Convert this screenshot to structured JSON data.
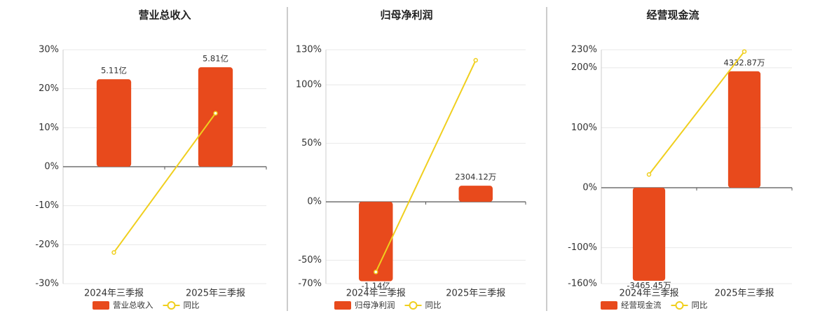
{
  "chart_data": [
    {
      "type": "combo",
      "title": "营业总收入",
      "categories": [
        "2024年三季报",
        "2025年三季报"
      ],
      "series": [
        {
          "name": "营业总收入",
          "color": "#e84a1c",
          "kind": "bar",
          "values": [
            511000000,
            581000000
          ],
          "value_labels": [
            "5.11亿",
            "5.81亿"
          ]
        },
        {
          "name": "同比",
          "color": "#f0cf1e",
          "kind": "line",
          "values": [
            -22,
            13.7
          ]
        }
      ],
      "ylim": [
        -30,
        30
      ],
      "yticks": [
        {
          "value": 30,
          "label": "30%"
        },
        {
          "value": 20,
          "label": "20%"
        },
        {
          "value": 10,
          "label": "10%"
        },
        {
          "value": 0,
          "label": "0%"
        },
        {
          "value": -10,
          "label": "-10%"
        },
        {
          "value": -20,
          "label": "-20%"
        },
        {
          "value": -30,
          "label": "-30%"
        }
      ],
      "grid": true
    },
    {
      "type": "combo",
      "title": "归母净利润",
      "categories": [
        "2024年三季报",
        "2025年三季报"
      ],
      "series": [
        {
          "name": "归母净利润",
          "color": "#e84a1c",
          "kind": "bar",
          "values": [
            -114000000,
            23041200
          ],
          "value_labels": [
            "-1.14亿",
            "2304.12万"
          ]
        },
        {
          "name": "同比",
          "color": "#f0cf1e",
          "kind": "line",
          "values": [
            -60,
            121
          ]
        }
      ],
      "ylim": [
        -70,
        130
      ],
      "yticks": [
        {
          "value": 130,
          "label": "130%"
        },
        {
          "value": 100,
          "label": "100%"
        },
        {
          "value": 50,
          "label": "50%"
        },
        {
          "value": 0,
          "label": "0%"
        },
        {
          "value": -50,
          "label": "-50%"
        },
        {
          "value": -70,
          "label": "-70%"
        }
      ],
      "grid": true
    },
    {
      "type": "combo",
      "title": "经营现金流",
      "categories": [
        "2024年三季报",
        "2025年三季报"
      ],
      "series": [
        {
          "name": "经营现金流",
          "color": "#e84a1c",
          "kind": "bar",
          "values": [
            -34654500,
            43328700
          ],
          "value_labels": [
            "-3465.45万",
            "4332.87万"
          ]
        },
        {
          "name": "同比",
          "color": "#f0cf1e",
          "kind": "line",
          "values": [
            22,
            227
          ]
        }
      ],
      "ylim": [
        -160,
        230
      ],
      "yticks": [
        {
          "value": 230,
          "label": "230%"
        },
        {
          "value": 200,
          "label": "200%"
        },
        {
          "value": 100,
          "label": "100%"
        },
        {
          "value": 0,
          "label": "0%"
        },
        {
          "value": -100,
          "label": "-100%"
        },
        {
          "value": -160,
          "label": "-160%"
        }
      ],
      "grid": true
    }
  ]
}
